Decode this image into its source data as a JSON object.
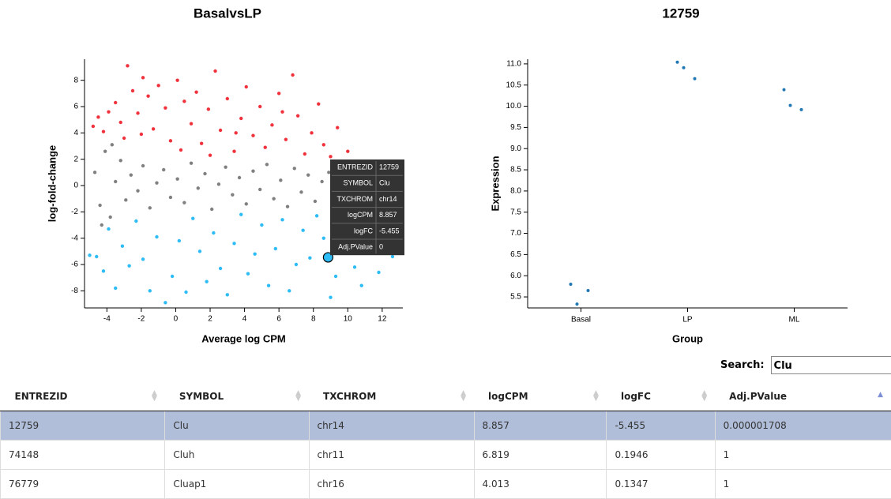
{
  "chart_data": [
    {
      "type": "scatter",
      "title": "BasalvsLP",
      "xlabel": "Average log CPM",
      "ylabel": "log-fold-change",
      "xlim": [
        -5.3,
        13.2
      ],
      "ylim": [
        -9.3,
        9.6
      ],
      "xticks": [
        -4,
        -2,
        0,
        2,
        4,
        6,
        8,
        10,
        12
      ],
      "yticks": [
        -8,
        -6,
        -4,
        -2,
        0,
        2,
        4,
        6,
        8
      ],
      "series": [
        {
          "color": "#808080",
          "x": [
            -4.7,
            -4.4,
            -4.1,
            -3.8,
            -3.5,
            -3.2,
            -2.9,
            -2.6,
            -2.2,
            -1.9,
            -1.5,
            -1.1,
            -0.7,
            -0.3,
            0.1,
            0.5,
            0.9,
            1.3,
            1.7,
            2.1,
            2.5,
            2.9,
            3.3,
            3.7,
            4.1,
            4.5,
            4.9,
            5.3,
            5.7,
            6.1,
            6.5,
            6.9,
            7.3,
            7.7,
            8.1,
            8.5,
            8.9,
            9.3,
            9.7,
            -4.3,
            -3.7
          ],
          "values": [
            1.0,
            -1.5,
            2.6,
            -2.4,
            0.3,
            1.9,
            -1.1,
            0.8,
            -0.4,
            1.5,
            -1.7,
            0.2,
            1.2,
            -0.9,
            0.5,
            -1.3,
            1.7,
            -0.2,
            0.9,
            -1.8,
            0.1,
            1.4,
            -0.7,
            0.6,
            -1.4,
            1.1,
            -0.3,
            1.6,
            -1.0,
            0.4,
            -1.6,
            1.3,
            -0.5,
            0.8,
            -1.2,
            0.3,
            1.0,
            -0.6,
            0.2,
            -3.0,
            3.1
          ]
        },
        {
          "color": "#f0323c",
          "x": [
            -4.8,
            -4.5,
            -4.2,
            -3.9,
            -3.5,
            -3.2,
            -2.8,
            -2.5,
            -2.2,
            -1.9,
            -1.6,
            -1.3,
            -1.0,
            -0.6,
            -0.3,
            0.1,
            0.5,
            0.9,
            1.2,
            1.5,
            1.9,
            2.3,
            2.6,
            3.0,
            3.4,
            3.8,
            4.1,
            4.5,
            4.9,
            5.2,
            5.6,
            6.0,
            6.4,
            6.8,
            7.1,
            7.5,
            7.9,
            8.3,
            8.6,
            9.0,
            9.4,
            10.0,
            -2.0,
            0.3,
            2.0,
            3.5,
            -3.0,
            6.2
          ],
          "values": [
            4.5,
            5.2,
            4.1,
            5.6,
            6.3,
            4.8,
            9.1,
            7.2,
            5.5,
            8.2,
            6.8,
            4.3,
            7.6,
            5.9,
            3.4,
            8.0,
            6.4,
            4.7,
            7.1,
            3.2,
            5.8,
            8.7,
            4.2,
            6.6,
            2.6,
            5.1,
            7.5,
            3.8,
            6.0,
            2.9,
            4.6,
            7.0,
            3.5,
            8.4,
            5.3,
            2.4,
            4.0,
            6.2,
            3.1,
            2.2,
            4.4,
            2.6,
            3.9,
            2.7,
            2.3,
            4.0,
            3.6,
            5.6
          ]
        },
        {
          "color": "#2dbcf5",
          "x": [
            -5.0,
            -4.6,
            -4.2,
            -3.9,
            -3.5,
            -3.1,
            -2.7,
            -2.3,
            -1.9,
            -1.5,
            -1.1,
            -0.6,
            -0.2,
            0.2,
            0.6,
            1.0,
            1.4,
            1.8,
            2.2,
            2.6,
            3.0,
            3.4,
            3.8,
            4.2,
            4.6,
            5.0,
            5.4,
            5.8,
            6.2,
            6.6,
            7.0,
            7.4,
            7.8,
            8.2,
            8.6,
            9.0,
            9.3,
            9.6,
            10.4,
            10.8,
            11.8,
            12.6
          ],
          "values": [
            -5.3,
            -5.4,
            -6.5,
            -3.3,
            -7.8,
            -4.6,
            -6.1,
            -2.7,
            -5.6,
            -8.0,
            -3.9,
            -8.9,
            -6.9,
            -4.2,
            -8.1,
            -2.5,
            -5.0,
            -7.3,
            -3.6,
            -6.3,
            -8.3,
            -4.4,
            -2.2,
            -6.7,
            -5.2,
            -3.0,
            -7.6,
            -4.8,
            -2.6,
            -8.0,
            -6.0,
            -3.4,
            -5.5,
            -2.3,
            -4.0,
            -8.5,
            -6.9,
            -3.2,
            -6.2,
            -7.6,
            -6.6,
            -5.4
          ]
        }
      ]
    },
    {
      "type": "strip",
      "title": "12759",
      "xlabel": "Group",
      "ylabel": "Expression",
      "categories": [
        "Basal",
        "LP",
        "ML"
      ],
      "color": "#1f77b4",
      "values": [
        [
          5.8,
          5.33,
          5.65
        ],
        [
          11.04,
          10.91,
          10.65
        ],
        [
          10.39,
          10.02,
          9.92
        ]
      ],
      "ylim": [
        5.24,
        11.11
      ],
      "yticks": [
        5.5,
        {
          "value": 6,
          "label": "6.0"
        },
        6.5,
        {
          "value": 7,
          "label": "7.0"
        },
        7.5,
        {
          "value": 8,
          "label": "8.0"
        },
        8.5,
        {
          "value": 9,
          "label": "9.0"
        },
        9.5,
        {
          "value": 10,
          "label": "10.0"
        },
        10.5,
        {
          "value": 11,
          "label": "11.0"
        }
      ]
    }
  ],
  "tooltip": {
    "rows": [
      [
        "ENTREZID",
        12759
      ],
      [
        "SYMBOL",
        "Clu"
      ],
      [
        "TXCHROM",
        "chr14"
      ],
      [
        "logCPM",
        8.857
      ],
      [
        "logFC",
        -5.455
      ],
      [
        "Adj.PValue",
        0
      ]
    ]
  },
  "search": {
    "label": "Search:",
    "value": "Clu"
  },
  "table": {
    "headers": [
      "ENTREZID",
      "SYMBOL",
      "TXCHROM",
      "logCPM",
      "logFC",
      "Adj.PValue"
    ],
    "rows": [
      [
        "12759",
        "Clu",
        "chr14",
        "8.857",
        "-5.455",
        "0.000001708"
      ],
      [
        "74148",
        "Cluh",
        "chr11",
        "6.819",
        "0.1946",
        "1"
      ],
      [
        "76779",
        "Cluap1",
        "chr16",
        "4.013",
        "0.1347",
        "1"
      ]
    ]
  }
}
